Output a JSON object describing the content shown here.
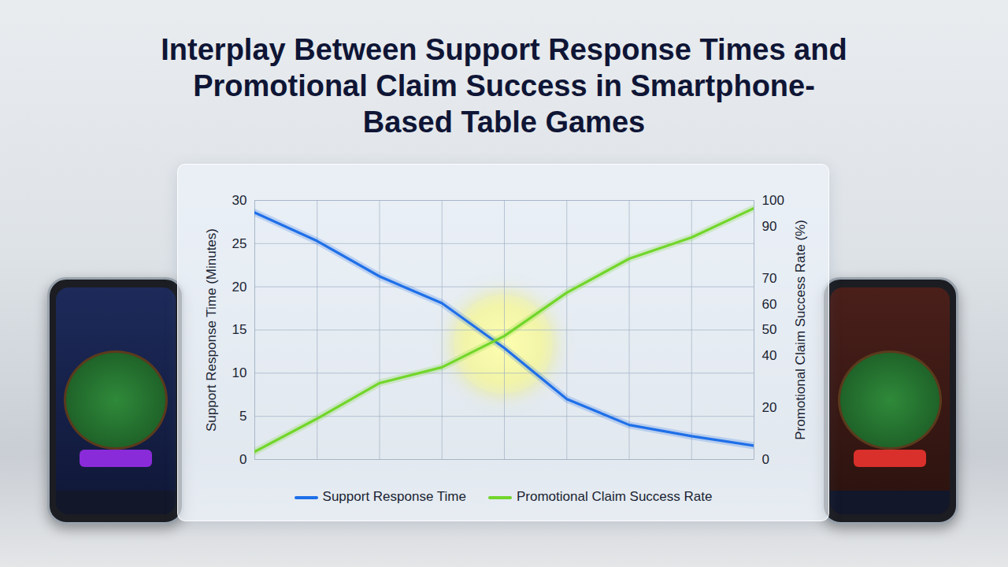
{
  "chart_data": {
    "type": "line",
    "title": "Interplay Between Support Response Times and Promotional Claim Success in Smartphone-Based Table Games",
    "x": [
      0,
      1,
      2,
      3,
      4,
      5,
      6,
      7,
      8
    ],
    "xlim": [
      0,
      8
    ],
    "xticks": [
      0,
      1,
      2,
      3,
      4,
      5,
      6,
      7,
      8
    ],
    "ylabel": "Support Response Time (Minutes)",
    "ylim": [
      0,
      30
    ],
    "yticks": [
      0,
      5,
      10,
      15,
      20,
      25,
      30
    ],
    "y2label": "Promotional Claim Success Rate (%)",
    "y2lim": [
      0,
      100
    ],
    "y2ticks": [
      0,
      20,
      40,
      50,
      60,
      70,
      90,
      100
    ],
    "grid": true,
    "legend": "bottom",
    "tick_labels": "y",
    "series": [
      {
        "name": "Support Response Time",
        "color": "#1f6fe8",
        "values": [
          28.6,
          25.3,
          21.2,
          18.1,
          12.9,
          7.0,
          4.0,
          2.7,
          1.6
        ]
      },
      {
        "name": "Promotional Claim Success Rate",
        "color": "#72d62a",
        "axis": "y2",
        "values": [
          3.0,
          15.8,
          29.5,
          35.6,
          47.7,
          64.4,
          77.5,
          85.7,
          97.0
        ]
      }
    ]
  }
}
